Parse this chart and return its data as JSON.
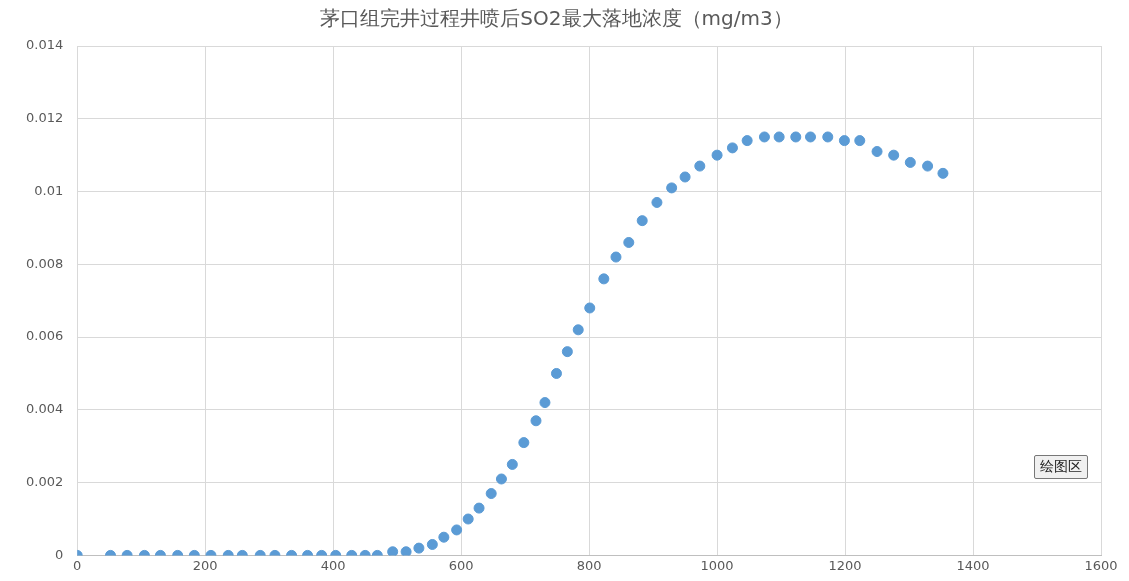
{
  "chart_data": {
    "type": "scatter",
    "title": "茅口组完井过程井喷后SO2最大落地浓度（mg/m3）",
    "series": [
      {
        "color": "#5b9bd5",
        "x": [
          0,
          52,
          78,
          105,
          130,
          157,
          183,
          209,
          236,
          258,
          286,
          309,
          335,
          360,
          382,
          404,
          429,
          450,
          469,
          493,
          514,
          534,
          555,
          573,
          593,
          611,
          628,
          647,
          663,
          680,
          698,
          717,
          731,
          749,
          766,
          783,
          801,
          823,
          842,
          862,
          883,
          906,
          929,
          950,
          973,
          1000,
          1024,
          1047,
          1074,
          1097,
          1123,
          1146,
          1173,
          1199,
          1223,
          1250,
          1276,
          1302,
          1329,
          1353
        ],
        "values": [
          0,
          0,
          0,
          0,
          0,
          0,
          0,
          0,
          0,
          0,
          0,
          0,
          0,
          0,
          0,
          0,
          0,
          0,
          0,
          0.0001,
          0.0001,
          0.0002,
          0.0003,
          0.0005,
          0.0007,
          0.001,
          0.0013,
          0.0017,
          0.0021,
          0.0025,
          0.0031,
          0.0037,
          0.0042,
          0.005,
          0.0056,
          0.0062,
          0.0068,
          0.0076,
          0.0082,
          0.0086,
          0.0092,
          0.0097,
          0.0101,
          0.0104,
          0.0107,
          0.011,
          0.0112,
          0.0114,
          0.0115,
          0.0115,
          0.0115,
          0.0115,
          0.0115,
          0.0114,
          0.0114,
          0.0111,
          0.011,
          0.0108,
          0.0107,
          0.0105
        ]
      }
    ],
    "xlim": [
      0,
      1600
    ],
    "xticks": [
      0,
      200,
      400,
      600,
      800,
      1000,
      1200,
      1400,
      1600
    ],
    "ylim": [
      0,
      0.014
    ],
    "yticks": [
      0,
      0.002,
      0.004,
      0.006,
      0.008,
      0.01,
      0.012,
      0.014
    ],
    "grid": true,
    "legend": false,
    "marker": "circle",
    "annotations": [
      "绘图区"
    ]
  }
}
